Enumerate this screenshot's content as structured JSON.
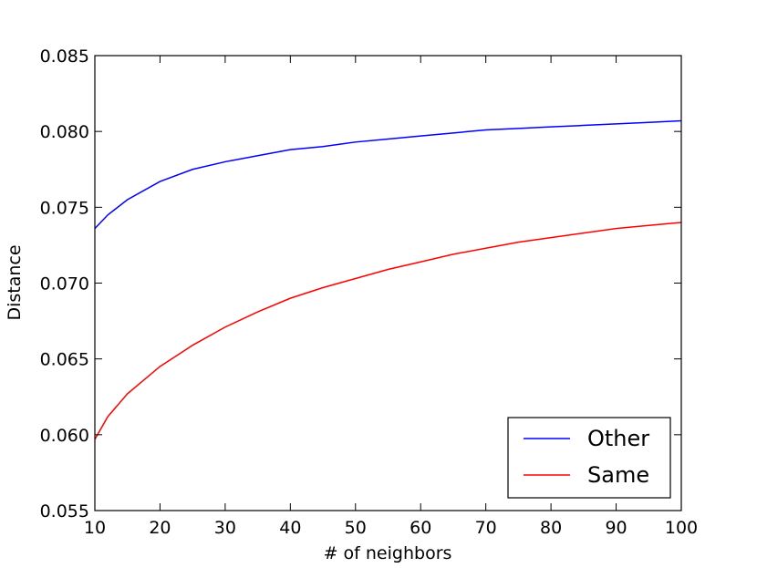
{
  "chart_data": {
    "type": "line",
    "title": "",
    "xlabel": "# of neighbors",
    "ylabel": "Distance",
    "xlim": [
      10,
      100
    ],
    "ylim": [
      0.055,
      0.085
    ],
    "xticks": [
      "10",
      "20",
      "30",
      "40",
      "50",
      "60",
      "70",
      "80",
      "90",
      "100"
    ],
    "yticks": [
      "0.055",
      "0.060",
      "0.065",
      "0.070",
      "0.075",
      "0.080",
      "0.085"
    ],
    "grid": false,
    "legend_position": "lower-right",
    "x": [
      10,
      12,
      15,
      20,
      25,
      30,
      35,
      40,
      45,
      50,
      55,
      60,
      65,
      70,
      75,
      80,
      85,
      90,
      95,
      100
    ],
    "series": [
      {
        "name": "Other",
        "color": "#0000ff",
        "values": [
          0.0736,
          0.0745,
          0.0755,
          0.0767,
          0.0775,
          0.078,
          0.0784,
          0.0788,
          0.079,
          0.0793,
          0.0795,
          0.0797,
          0.0799,
          0.0801,
          0.0802,
          0.0803,
          0.0804,
          0.0805,
          0.0806,
          0.0807
        ]
      },
      {
        "name": "Same",
        "color": "#ff0000",
        "values": [
          0.0597,
          0.0612,
          0.0627,
          0.0645,
          0.0659,
          0.0671,
          0.0681,
          0.069,
          0.0697,
          0.0703,
          0.0709,
          0.0714,
          0.0719,
          0.0723,
          0.0727,
          0.073,
          0.0733,
          0.0736,
          0.0738,
          0.074
        ]
      }
    ]
  }
}
